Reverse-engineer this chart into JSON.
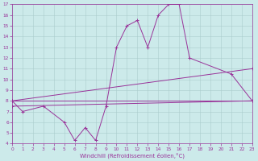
{
  "xlabel": "Windchill (Refroidissement éolien,°C)",
  "bg_color": "#cceaea",
  "grid_color": "#aacccc",
  "line_color": "#993399",
  "xlim": [
    0,
    23
  ],
  "ylim": [
    4,
    17
  ],
  "xticks": [
    0,
    1,
    2,
    3,
    4,
    5,
    6,
    7,
    8,
    9,
    10,
    11,
    12,
    13,
    14,
    15,
    16,
    17,
    18,
    19,
    20,
    21,
    22,
    23
  ],
  "yticks": [
    4,
    5,
    6,
    7,
    8,
    9,
    10,
    11,
    12,
    13,
    14,
    15,
    16,
    17
  ],
  "curve_x": [
    0,
    1,
    3,
    5,
    6,
    7,
    8,
    9,
    10,
    11,
    12,
    13,
    14,
    15,
    16,
    17,
    21,
    23
  ],
  "curve_y": [
    8.0,
    7.0,
    7.5,
    6.0,
    4.3,
    5.5,
    4.3,
    7.5,
    13.0,
    15.0,
    15.5,
    13.0,
    16.0,
    17.0,
    17.0,
    12.0,
    10.5,
    8.0
  ],
  "line1_x": [
    0,
    23
  ],
  "line1_y": [
    8.0,
    8.0
  ],
  "line2_x": [
    0,
    23
  ],
  "line2_y": [
    8.0,
    11.0
  ],
  "line3_x": [
    0,
    23
  ],
  "line3_y": [
    7.5,
    8.0
  ],
  "marker": "+",
  "lw": 0.7,
  "ms": 3.0,
  "mew": 0.7,
  "tick_fontsize": 4.2,
  "xlabel_fontsize": 5.0
}
